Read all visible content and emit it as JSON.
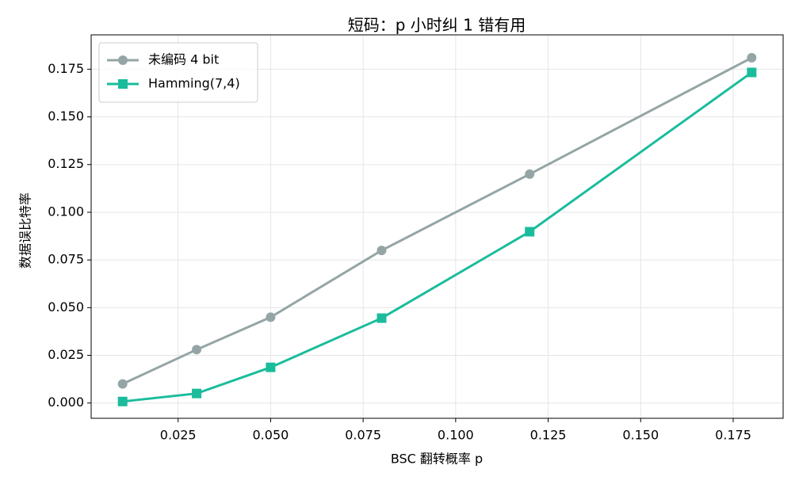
{
  "chart_data": {
    "type": "line",
    "title": "短码：p 小时纠 1 错有用",
    "x_label": "BSC 翻转概率 p",
    "y_label": "数据误比特率",
    "x": [
      0.01,
      0.03,
      0.05,
      0.08,
      0.12,
      0.18
    ],
    "series": [
      {
        "name": "未编码 4 bit",
        "color": "#95a5a6",
        "marker": "circle",
        "values": [
          0.01,
          0.028,
          0.045,
          0.08,
          0.12,
          0.181
        ]
      },
      {
        "name": "Hamming(7,4)",
        "color": "#1abc9c",
        "marker": "square",
        "values": [
          0.0008,
          0.005,
          0.0187,
          0.0445,
          0.0898,
          0.1733
        ]
      }
    ],
    "xlim": [
      0.0015,
      0.1885
    ],
    "ylim": [
      -0.008,
      0.193
    ],
    "xticks": [
      {
        "value": 0.025,
        "label": "0.025"
      },
      {
        "value": 0.05,
        "label": "0.050"
      },
      {
        "value": 0.075,
        "label": "0.075"
      },
      {
        "value": 0.1,
        "label": "0.100"
      },
      {
        "value": 0.125,
        "label": "0.125"
      },
      {
        "value": 0.15,
        "label": "0.150"
      },
      {
        "value": 0.175,
        "label": "0.175"
      }
    ],
    "yticks": [
      {
        "value": 0,
        "label": "0.000"
      },
      {
        "value": 0.025,
        "label": "0.025"
      },
      {
        "value": 0.05,
        "label": "0.050"
      },
      {
        "value": 0.075,
        "label": "0.075"
      },
      {
        "value": 0.1,
        "label": "0.100"
      },
      {
        "value": 0.125,
        "label": "0.125"
      },
      {
        "value": 0.15,
        "label": "0.150"
      },
      {
        "value": 0.175,
        "label": "0.175"
      }
    ],
    "grid": true,
    "legend": "upper-left"
  }
}
